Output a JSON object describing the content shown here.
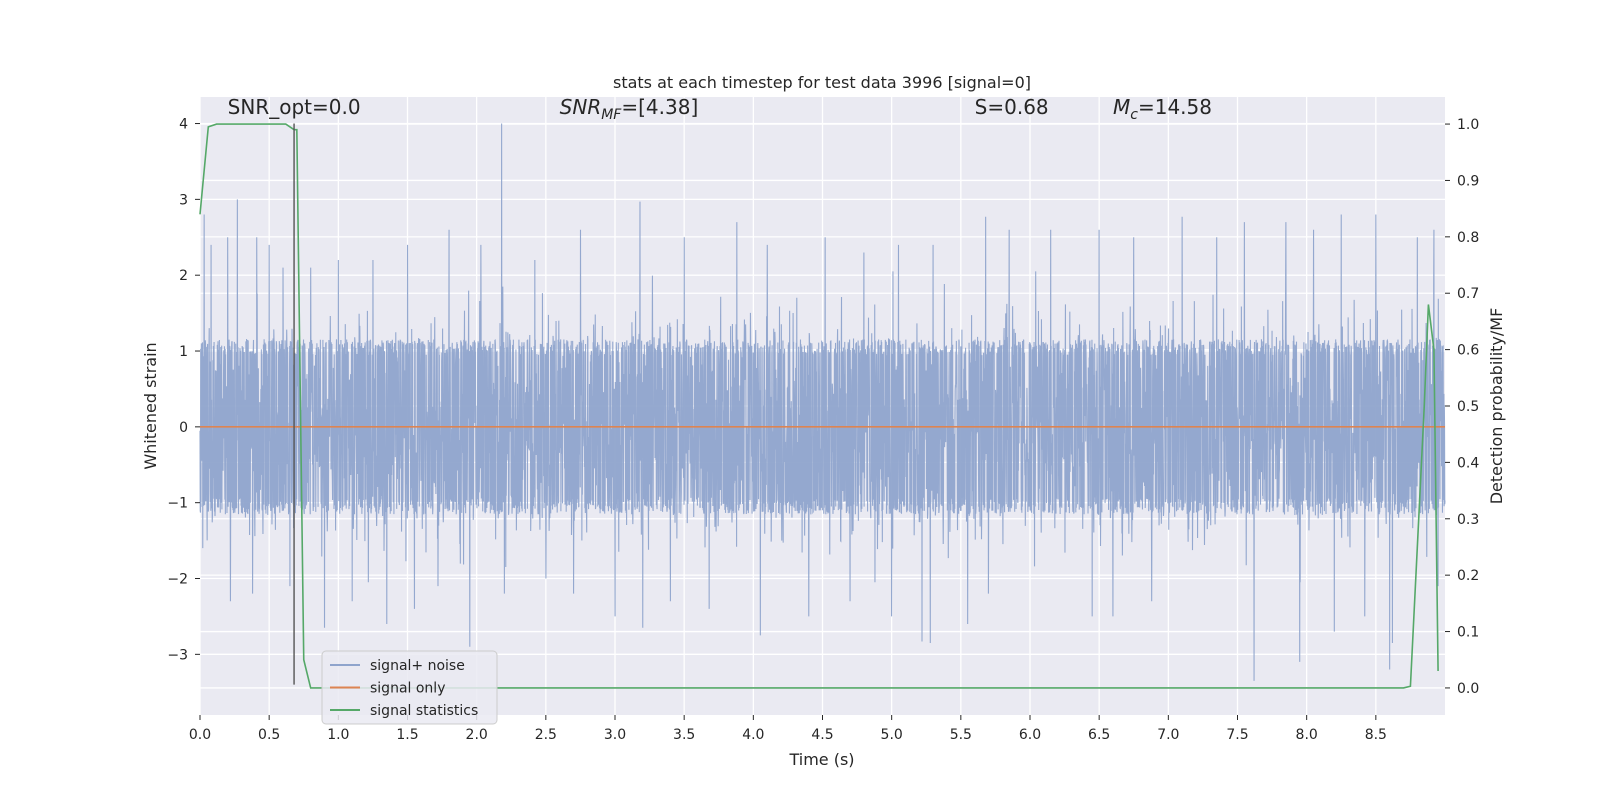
{
  "chart_data": {
    "type": "line",
    "title": "stats at each timestep for test data 3996 [signal=0]",
    "xlabel": "Time (s)",
    "ylabel": "Whitened strain",
    "y2label": "Detection probability/MF",
    "xlim": [
      0.0,
      9.0
    ],
    "ylim": [
      -3.8,
      4.35
    ],
    "y2lim": [
      -0.048,
      1.048
    ],
    "xticks": [
      0.0,
      0.5,
      1.0,
      1.5,
      2.0,
      2.5,
      3.0,
      3.5,
      4.0,
      4.5,
      5.0,
      5.5,
      6.0,
      6.5,
      7.0,
      7.5,
      8.0,
      8.5
    ],
    "xtick_labels": [
      "0.0",
      "0.5",
      "1.0",
      "1.5",
      "2.0",
      "2.5",
      "3.0",
      "3.5",
      "4.0",
      "4.5",
      "5.0",
      "5.5",
      "6.0",
      "6.5",
      "7.0",
      "7.5",
      "8.0",
      "8.5"
    ],
    "yticks": [
      -3,
      -2,
      -1,
      0,
      1,
      2,
      3,
      4
    ],
    "ytick_labels": [
      "−3",
      "−2",
      "−1",
      "0",
      "1",
      "2",
      "3",
      "4"
    ],
    "y2ticks": [
      0.0,
      0.1,
      0.2,
      0.3,
      0.4,
      0.5,
      0.6,
      0.7,
      0.8,
      0.9,
      1.0
    ],
    "y2tick_labels": [
      "0.0",
      "0.1",
      "0.2",
      "0.3",
      "0.4",
      "0.5",
      "0.6",
      "0.7",
      "0.8",
      "0.9",
      "1.0"
    ],
    "grid": true,
    "legend_position": "bottom-left",
    "annotations": [
      {
        "text": "SNR_opt=0.0",
        "x": 0.2,
        "y": 4.1
      },
      {
        "text": "SNR_MF=[4.38]",
        "x": 2.6,
        "y": 4.1
      },
      {
        "text": "S=0.68",
        "x": 5.6,
        "y": 4.1
      },
      {
        "text": "M_c=14.58",
        "x": 6.6,
        "y": 4.1
      }
    ],
    "series": [
      {
        "name": "signal+ noise",
        "color": "#8fa4cc",
        "axis": "left",
        "kind": "noise",
        "x_range": [
          0.0,
          9.0
        ],
        "envelope_abs": 1.05,
        "peaks": [
          [
            0.03,
            2.8
          ],
          [
            0.08,
            2.4
          ],
          [
            0.2,
            2.5
          ],
          [
            0.27,
            3.0
          ],
          [
            0.41,
            2.5
          ],
          [
            0.5,
            2.4
          ],
          [
            0.6,
            2.1
          ],
          [
            0.8,
            2.1
          ],
          [
            1.0,
            2.2
          ],
          [
            1.25,
            2.2
          ],
          [
            1.5,
            2.4
          ],
          [
            1.8,
            2.6
          ],
          [
            2.03,
            2.4
          ],
          [
            2.18,
            4.0
          ],
          [
            2.42,
            2.2
          ],
          [
            2.75,
            2.6
          ],
          [
            3.18,
            2.97
          ],
          [
            3.5,
            2.5
          ],
          [
            3.88,
            2.7
          ],
          [
            4.1,
            2.4
          ],
          [
            4.52,
            2.5
          ],
          [
            4.8,
            2.3
          ],
          [
            5.05,
            2.4
          ],
          [
            5.3,
            2.4
          ],
          [
            5.68,
            2.77
          ],
          [
            5.85,
            2.6
          ],
          [
            6.15,
            2.6
          ],
          [
            6.5,
            2.6
          ],
          [
            6.75,
            2.5
          ],
          [
            7.1,
            2.77
          ],
          [
            7.35,
            2.5
          ],
          [
            7.55,
            2.7
          ],
          [
            7.85,
            2.7
          ],
          [
            8.05,
            2.6
          ],
          [
            8.25,
            2.8
          ],
          [
            8.5,
            2.8
          ],
          [
            8.8,
            2.5
          ],
          [
            8.92,
            2.6
          ]
        ],
        "troughs": [
          [
            0.02,
            -1.6
          ],
          [
            0.22,
            -2.3
          ],
          [
            0.38,
            -2.2
          ],
          [
            0.5,
            -2.1
          ],
          [
            0.65,
            -2.1
          ],
          [
            0.9,
            -2.65
          ],
          [
            1.1,
            -2.3
          ],
          [
            1.35,
            -2.6
          ],
          [
            1.55,
            -2.4
          ],
          [
            1.72,
            -2.1
          ],
          [
            1.95,
            -2.9
          ],
          [
            2.2,
            -2.2
          ],
          [
            2.5,
            -2.0
          ],
          [
            2.7,
            -2.2
          ],
          [
            3.0,
            -2.5
          ],
          [
            3.2,
            -2.65
          ],
          [
            3.4,
            -2.3
          ],
          [
            3.68,
            -2.4
          ],
          [
            4.05,
            -2.75
          ],
          [
            4.1,
            -2.9
          ],
          [
            4.4,
            -2.5
          ],
          [
            4.7,
            -2.3
          ],
          [
            5.0,
            -2.5
          ],
          [
            5.22,
            -2.83
          ],
          [
            5.28,
            -2.85
          ],
          [
            5.55,
            -2.6
          ],
          [
            5.7,
            -2.2
          ],
          [
            5.85,
            -2.5
          ],
          [
            6.15,
            -2.3
          ],
          [
            6.45,
            -2.5
          ],
          [
            6.6,
            -2.5
          ],
          [
            6.88,
            -2.3
          ],
          [
            7.1,
            -2.5
          ],
          [
            7.35,
            -2.2
          ],
          [
            7.62,
            -3.35
          ],
          [
            7.95,
            -3.1
          ],
          [
            8.2,
            -2.7
          ],
          [
            8.42,
            -2.5
          ],
          [
            8.6,
            -3.2
          ],
          [
            8.62,
            -2.85
          ],
          [
            8.8,
            -2.3
          ],
          [
            8.95,
            -2.1
          ]
        ]
      },
      {
        "name": "signal only",
        "color": "#dd8452",
        "axis": "left",
        "x": [
          0.0,
          9.0
        ],
        "y": [
          0.0,
          0.0
        ]
      },
      {
        "name": "signal statistics",
        "color": "#55a868",
        "axis": "right",
        "x": [
          0.0,
          0.06,
          0.12,
          0.25,
          0.5,
          0.62,
          0.68,
          0.7,
          0.75,
          0.8,
          0.85,
          1.0,
          2.0,
          4.0,
          6.0,
          8.0,
          8.7,
          8.75,
          8.8,
          8.85,
          8.88,
          8.92,
          8.95
        ],
        "y": [
          0.84,
          0.995,
          1.0,
          1.0,
          1.0,
          1.0,
          0.99,
          0.99,
          0.05,
          0.0,
          0.0,
          0.0,
          0.0,
          0.0,
          0.0,
          0.0,
          0.0,
          0.003,
          0.25,
          0.5,
          0.68,
          0.6,
          0.03
        ]
      }
    ],
    "vline": {
      "x": 0.68,
      "y_from": -3.4,
      "y_to": 4.0,
      "color": "#555555"
    }
  }
}
